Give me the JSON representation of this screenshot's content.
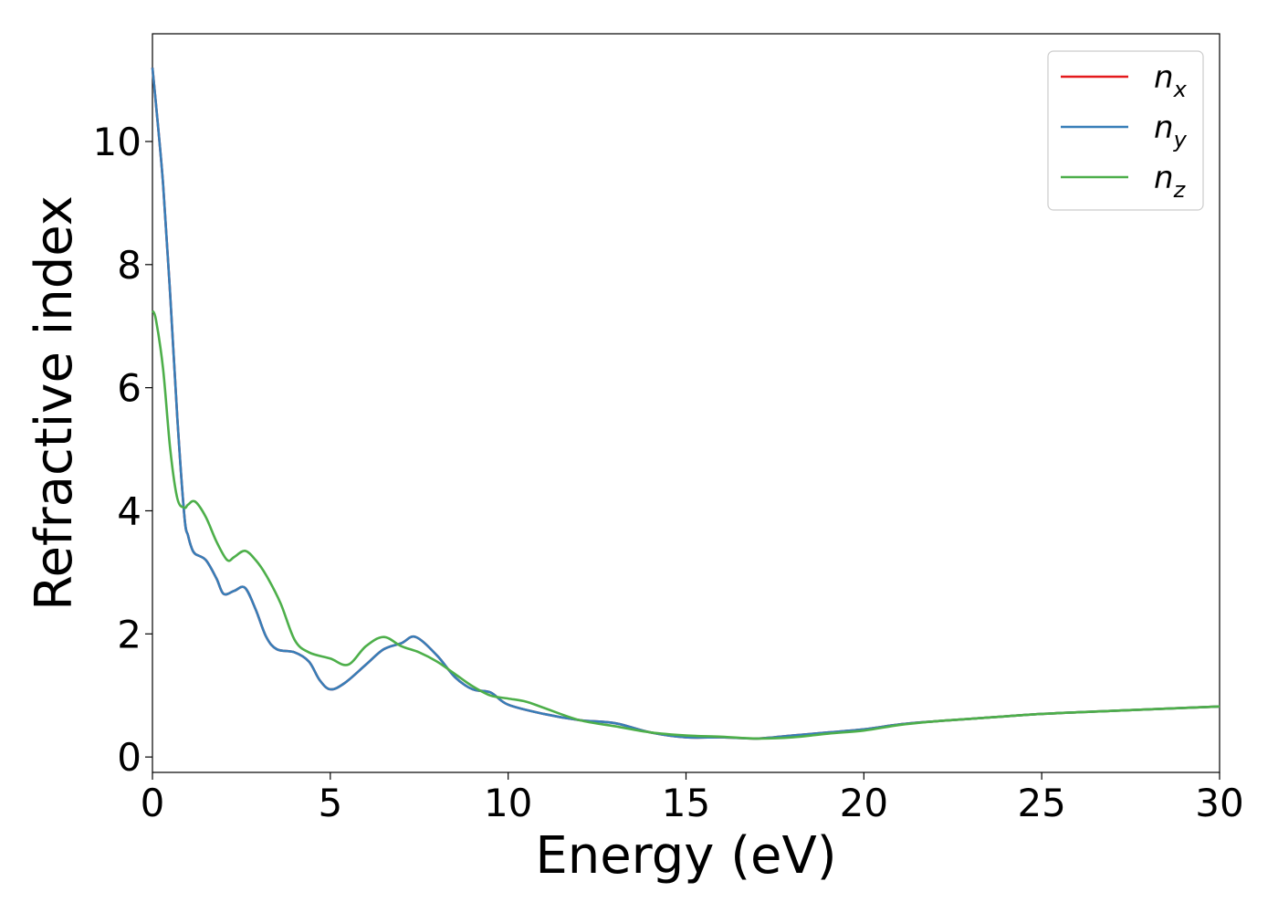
{
  "chart_data": {
    "type": "line",
    "title": "",
    "xlabel": "Energy (eV)",
    "ylabel": "Refractive index",
    "xlim": [
      0,
      30
    ],
    "ylim": [
      -0.25,
      11.75
    ],
    "xticks": [
      0,
      5,
      10,
      15,
      20,
      25,
      30
    ],
    "yticks": [
      0,
      2,
      4,
      6,
      8,
      10
    ],
    "grid": false,
    "legend_position": "top-right",
    "series": [
      {
        "name": "n",
        "subscript": "x",
        "color": "#e41a1c",
        "x": [
          0,
          0.1,
          0.3,
          0.5,
          0.7,
          0.9,
          1.0,
          1.1,
          1.2,
          1.5,
          1.8,
          2.0,
          2.3,
          2.6,
          2.9,
          3.2,
          3.5,
          4.0,
          4.4,
          4.7,
          5.0,
          5.4,
          6.0,
          6.5,
          7.0,
          7.4,
          8.0,
          8.5,
          9.0,
          9.5,
          10.0,
          11.0,
          12.0,
          13.0,
          14.0,
          15.0,
          16.0,
          17.0,
          18.0,
          19.0,
          20.0,
          21.0,
          22.0,
          23.0,
          25.0,
          27.0,
          30.0
        ],
        "y": [
          11.2,
          10.6,
          9.3,
          7.5,
          5.5,
          3.9,
          3.6,
          3.4,
          3.3,
          3.2,
          2.9,
          2.65,
          2.7,
          2.75,
          2.4,
          1.95,
          1.75,
          1.7,
          1.55,
          1.25,
          1.1,
          1.2,
          1.5,
          1.75,
          1.85,
          1.95,
          1.65,
          1.3,
          1.1,
          1.05,
          0.85,
          0.7,
          0.6,
          0.55,
          0.4,
          0.32,
          0.32,
          0.3,
          0.35,
          0.4,
          0.45,
          0.53,
          0.58,
          0.62,
          0.7,
          0.75,
          0.82
        ]
      },
      {
        "name": "n",
        "subscript": "y",
        "color": "#377eb8",
        "x": [
          0,
          0.1,
          0.3,
          0.5,
          0.7,
          0.9,
          1.0,
          1.1,
          1.2,
          1.5,
          1.8,
          2.0,
          2.3,
          2.6,
          2.9,
          3.2,
          3.5,
          4.0,
          4.4,
          4.7,
          5.0,
          5.4,
          6.0,
          6.5,
          7.0,
          7.4,
          8.0,
          8.5,
          9.0,
          9.5,
          10.0,
          11.0,
          12.0,
          13.0,
          14.0,
          15.0,
          16.0,
          17.0,
          18.0,
          19.0,
          20.0,
          21.0,
          22.0,
          23.0,
          25.0,
          27.0,
          30.0
        ],
        "y": [
          11.2,
          10.6,
          9.3,
          7.5,
          5.5,
          3.9,
          3.6,
          3.4,
          3.3,
          3.2,
          2.9,
          2.65,
          2.7,
          2.75,
          2.4,
          1.95,
          1.75,
          1.7,
          1.55,
          1.25,
          1.1,
          1.2,
          1.5,
          1.75,
          1.85,
          1.95,
          1.65,
          1.3,
          1.1,
          1.05,
          0.85,
          0.7,
          0.6,
          0.55,
          0.4,
          0.32,
          0.32,
          0.3,
          0.35,
          0.4,
          0.45,
          0.53,
          0.58,
          0.62,
          0.7,
          0.75,
          0.82
        ]
      },
      {
        "name": "n",
        "subscript": "z",
        "color": "#4daf4a",
        "x": [
          0,
          0.1,
          0.3,
          0.5,
          0.7,
          0.9,
          1.0,
          1.2,
          1.5,
          1.8,
          2.1,
          2.3,
          2.6,
          2.9,
          3.2,
          3.6,
          4.0,
          4.4,
          5.0,
          5.5,
          6.0,
          6.5,
          7.0,
          7.5,
          8.0,
          8.5,
          9.0,
          9.5,
          10.0,
          10.5,
          11.0,
          12.0,
          13.0,
          14.0,
          15.0,
          16.0,
          17.0,
          18.0,
          19.0,
          20.0,
          21.0,
          22.0,
          23.0,
          25.0,
          27.0,
          30.0
        ],
        "y": [
          7.25,
          7.1,
          6.3,
          5.0,
          4.2,
          4.05,
          4.1,
          4.15,
          3.9,
          3.5,
          3.2,
          3.25,
          3.35,
          3.2,
          2.95,
          2.5,
          1.9,
          1.7,
          1.6,
          1.5,
          1.8,
          1.95,
          1.8,
          1.7,
          1.55,
          1.35,
          1.15,
          1.0,
          0.95,
          0.9,
          0.8,
          0.6,
          0.5,
          0.4,
          0.35,
          0.33,
          0.3,
          0.32,
          0.38,
          0.43,
          0.52,
          0.58,
          0.62,
          0.7,
          0.75,
          0.82
        ]
      }
    ]
  }
}
